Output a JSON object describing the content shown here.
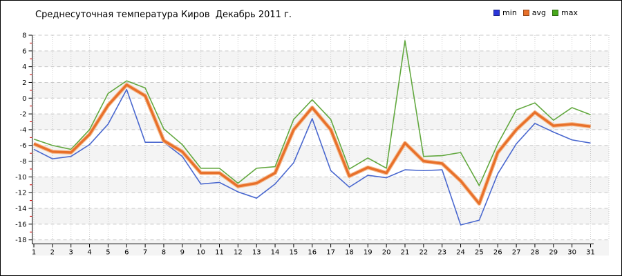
{
  "window": {
    "background": "#ffffff",
    "border_color": "#000000"
  },
  "chart_data": {
    "type": "line",
    "title": "Среднесуточная температура Киров  Декабрь 2011 г.",
    "xlabel": "",
    "ylabel": "",
    "x_days": [
      1,
      2,
      3,
      4,
      5,
      6,
      7,
      8,
      9,
      10,
      11,
      12,
      13,
      14,
      15,
      16,
      17,
      18,
      19,
      20,
      21,
      22,
      23,
      24,
      25,
      26,
      27,
      28,
      29,
      30,
      31
    ],
    "y_ticks": [
      8,
      6,
      4,
      2,
      0,
      -2,
      -4,
      -6,
      -8,
      -10,
      -12,
      -14,
      -16,
      -18
    ],
    "ylim": [
      -18,
      8
    ],
    "grid": "dashed",
    "legend_position": "top-right",
    "band_fill": "#f4f4f4",
    "gridline_color": "#c8c8c8",
    "axis_color": "#000000",
    "minor_tick_color": "#cc0000",
    "series": [
      {
        "name": "min",
        "line_color": "#4a68cf",
        "swatch_color": "#2b36d9",
        "line_width": 1.6,
        "values": [
          -6.5,
          -7.7,
          -7.4,
          -5.9,
          -3.3,
          1.1,
          -5.6,
          -5.6,
          -7.4,
          -10.9,
          -10.7,
          -11.9,
          -12.7,
          -10.9,
          -8.2,
          -2.6,
          -9.2,
          -11.3,
          -9.8,
          -10.1,
          -9.1,
          -9.2,
          -9.1,
          -16.1,
          -15.5,
          -9.6,
          -5.8,
          -3.2,
          -4.3,
          -5.3,
          -5.7
        ]
      },
      {
        "name": "avg",
        "line_color": "#e8702a",
        "halo_color": "#f5bd92",
        "swatch_color": "#e8702a",
        "line_width": 3.4,
        "values": [
          -5.8,
          -6.8,
          -6.9,
          -4.6,
          -0.9,
          1.7,
          0.3,
          -5.4,
          -6.8,
          -9.5,
          -9.5,
          -11.2,
          -10.8,
          -9.5,
          -4.0,
          -1.2,
          -4.0,
          -9.9,
          -8.8,
          -9.5,
          -5.7,
          -8.0,
          -8.3,
          -10.5,
          -13.4,
          -6.9,
          -4.0,
          -1.8,
          -3.5,
          -3.3,
          -3.6
        ]
      },
      {
        "name": "max",
        "line_color": "#62a83f",
        "swatch_color": "#48a81c",
        "line_width": 1.6,
        "values": [
          -5.2,
          -6.0,
          -6.5,
          -4.0,
          0.6,
          2.2,
          1.3,
          -3.9,
          -5.9,
          -8.9,
          -8.9,
          -10.8,
          -8.9,
          -8.7,
          -2.7,
          -0.2,
          -2.7,
          -9.0,
          -7.6,
          -8.9,
          7.3,
          -7.4,
          -7.3,
          -6.9,
          -11.1,
          -5.8,
          -1.5,
          -0.6,
          -2.8,
          -1.2,
          -2.1
        ]
      }
    ]
  }
}
